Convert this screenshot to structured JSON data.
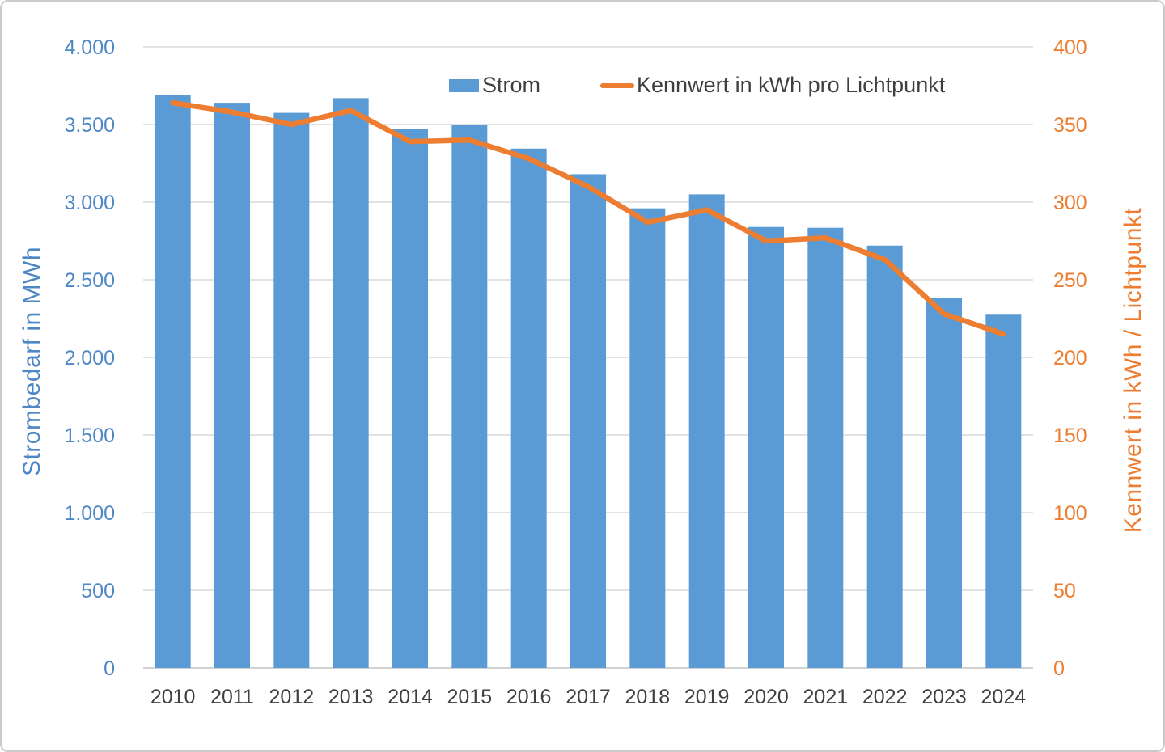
{
  "chart_data": {
    "type": "combo",
    "title": "",
    "categories": [
      "2010",
      "2011",
      "2012",
      "2013",
      "2014",
      "2015",
      "2016",
      "2017",
      "2018",
      "2019",
      "2020",
      "2021",
      "2022",
      "2023",
      "2024"
    ],
    "series": [
      {
        "name": "Strom",
        "type": "bar",
        "axis": "left",
        "color": "#5b9bd5",
        "values": [
          3690,
          3640,
          3575,
          3670,
          3470,
          3495,
          3345,
          3180,
          2960,
          3050,
          2840,
          2835,
          2720,
          2385,
          2280
        ]
      },
      {
        "name": "Kennwert in kWh pro Lichtpunkt",
        "type": "line",
        "axis": "right",
        "color": "#ed7d31",
        "values": [
          364,
          358,
          350,
          359,
          339,
          340,
          328,
          310,
          287,
          295,
          275,
          277,
          263,
          228,
          215
        ]
      }
    ],
    "left_axis": {
      "title": "Strombedarf in MWh",
      "ticks": [
        "0",
        "500",
        "1.000",
        "1.500",
        "2.000",
        "2.500",
        "3.000",
        "3.500",
        "4.000"
      ],
      "lim": [
        0,
        4000
      ],
      "tick_step": 500,
      "text_color": "#4e87c5"
    },
    "right_axis": {
      "title": "Kennwert in kWh / Lichtpunkt",
      "ticks": [
        "0",
        "50",
        "100",
        "150",
        "200",
        "250",
        "300",
        "350",
        "400"
      ],
      "lim": [
        0,
        400
      ],
      "tick_step": 50,
      "text_color": "#ed7d31"
    },
    "x_axis": {
      "text_color": "#404040"
    },
    "legend_position": "top",
    "grid": true,
    "grid_color": "#d9d9d9",
    "baseline_color": "#c3c3c3"
  }
}
